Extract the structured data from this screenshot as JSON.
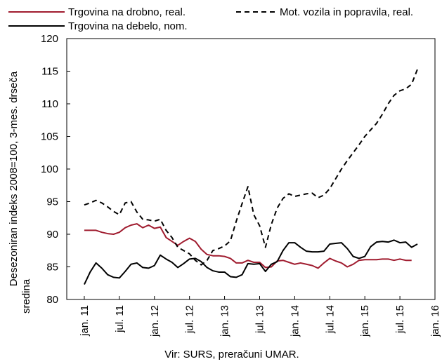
{
  "chart_data": {
    "type": "line",
    "ylabel_line1": "Desezoniran indeks 2008=100, 3-mes. drseča",
    "ylabel_line2": "sredina",
    "source": "Vir: SURS, preračuni UMAR.",
    "ylim": [
      80,
      120
    ],
    "yticks": [
      "80",
      "85",
      "90",
      "95",
      "100",
      "105",
      "110",
      "115",
      "120"
    ],
    "xticks": [
      "jan. 11",
      "jul. 11",
      "jan. 12",
      "jul. 12",
      "jan. 13",
      "jul. 13",
      "jan. 14",
      "jul. 14",
      "jan. 15",
      "jul. 15",
      "jan. 16"
    ],
    "x_start": "jan. 11",
    "grid": false,
    "legend_position": "top",
    "series": [
      {
        "name": "Trgovina na drobno, real.",
        "color": "#a01c2f",
        "dash": "solid",
        "values": [
          90.6,
          90.6,
          90.6,
          90.3,
          90.1,
          90.0,
          90.3,
          91.0,
          91.4,
          91.6,
          91.0,
          91.4,
          90.9,
          91.1,
          89.5,
          88.9,
          88.3,
          88.9,
          89.4,
          88.9,
          87.7,
          86.9,
          86.7,
          86.7,
          86.6,
          86.3,
          85.6,
          85.6,
          86.0,
          85.7,
          85.7,
          84.9,
          85.0,
          85.9,
          86.0,
          85.7,
          85.4,
          85.6,
          85.4,
          85.2,
          84.8,
          85.6,
          86.3,
          85.9,
          85.6,
          85.0,
          85.4,
          86.0,
          86.1,
          86.1,
          86.1,
          86.2,
          86.2,
          86.0,
          86.2,
          86.0,
          86.0
        ]
      },
      {
        "name": "Trgovina na debelo, nom.",
        "color": "#000000",
        "dash": "solid",
        "values": [
          82.3,
          84.2,
          85.6,
          84.8,
          83.8,
          83.4,
          83.3,
          84.3,
          85.4,
          85.6,
          84.9,
          84.8,
          85.2,
          86.8,
          86.2,
          85.7,
          84.9,
          85.5,
          86.2,
          86.3,
          85.8,
          84.9,
          84.4,
          84.2,
          84.2,
          83.5,
          83.4,
          83.8,
          85.5,
          85.4,
          85.5,
          84.3,
          85.4,
          85.8,
          87.5,
          88.7,
          88.7,
          88.0,
          87.4,
          87.3,
          87.3,
          87.4,
          88.5,
          88.6,
          88.7,
          87.8,
          86.6,
          86.3,
          86.6,
          88.1,
          88.8,
          88.9,
          88.8,
          89.1,
          88.7,
          88.8,
          88.0,
          88.5
        ]
      },
      {
        "name": "Mot. vozila in popravila, real.",
        "color": "#000000",
        "dash": "dashed",
        "values": [
          94.5,
          94.8,
          95.2,
          94.8,
          94.2,
          93.5,
          93.0,
          94.8,
          95.0,
          93.4,
          92.3,
          92.2,
          92.0,
          92.3,
          90.6,
          89.5,
          88.0,
          87.5,
          87.0,
          86.0,
          85.3,
          86.0,
          87.5,
          87.8,
          88.2,
          89.0,
          92.0,
          94.7,
          97.3,
          93.0,
          91.3,
          88.0,
          91.5,
          94.0,
          95.5,
          96.2,
          95.8,
          96.0,
          96.2,
          96.3,
          95.6,
          96.0,
          97.0,
          98.5,
          100.0,
          101.3,
          102.5,
          103.7,
          105.0,
          106.0,
          107.0,
          108.4,
          110.0,
          111.3,
          112.0,
          112.3,
          113.0,
          115.3
        ]
      }
    ]
  }
}
